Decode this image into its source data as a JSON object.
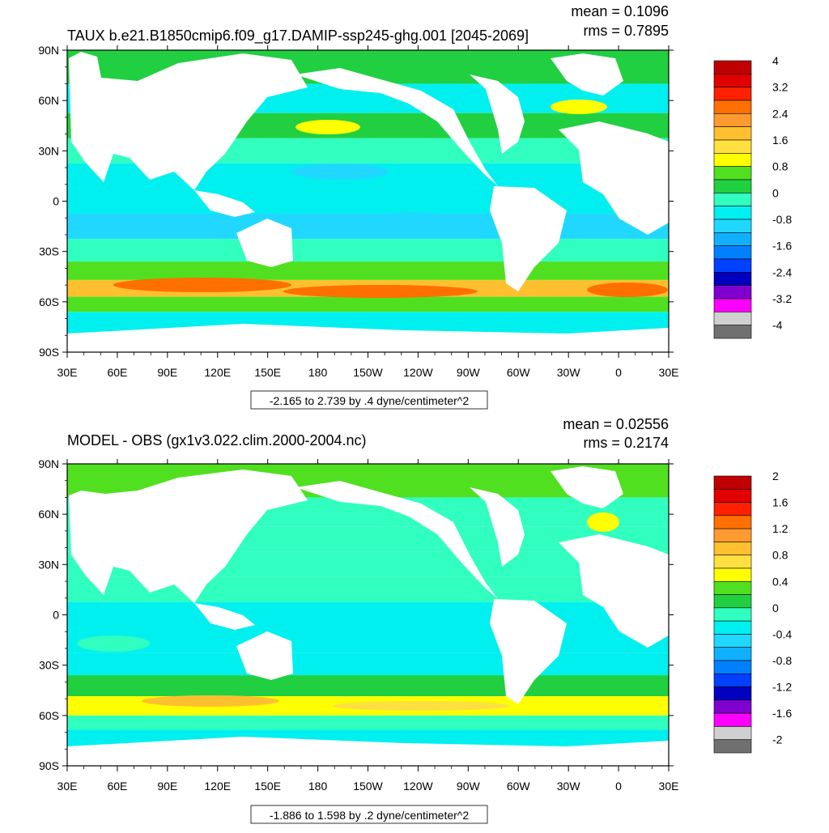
{
  "panels": [
    {
      "title": "TAUX b.e21.B1850cmip6.f09_g17.DAMIP-ssp245-ghg.001 [2045-2069]",
      "mean_text": "mean = 0.1096",
      "rms_text": "rms = 0.7895",
      "range_note": "-2.165 to 2.739 by .4 dyne/centimeter^2",
      "y_ticks": [
        "90N",
        "60N",
        "30N",
        "0",
        "30S",
        "60S",
        "90S"
      ],
      "x_ticks": [
        "30E",
        "60E",
        "90E",
        "120E",
        "150E",
        "180",
        "150W",
        "120W",
        "90W",
        "60W",
        "30W",
        "0",
        "30E"
      ],
      "colorbar": {
        "labels": [
          "4",
          "3.2",
          "2.4",
          "1.6",
          "0.8",
          "0",
          "-0.8",
          "-1.6",
          "-2.4",
          "-3.2",
          "-4"
        ],
        "colors": [
          "#c00000",
          "#e00000",
          "#ff2000",
          "#ff7000",
          "#ff9a30",
          "#ffc030",
          "#ffe040",
          "#ffff00",
          "#50e020",
          "#20d040",
          "#30ffc0",
          "#00f0f0",
          "#20d8ff",
          "#10b0ff",
          "#0080ff",
          "#0040ff",
          "#0000c0",
          "#8000d0",
          "#ff00ff",
          "#d0d0d0",
          "#707070"
        ]
      }
    },
    {
      "title": "MODEL - OBS (gx1v3.022.clim.2000-2004.nc)",
      "mean_text": "mean = 0.02556",
      "rms_text": "rms = 0.2174",
      "range_note": "-1.886 to 1.598 by .2 dyne/centimeter^2",
      "y_ticks": [
        "90N",
        "60N",
        "30N",
        "0",
        "30S",
        "60S",
        "90S"
      ],
      "x_ticks": [
        "30E",
        "60E",
        "90E",
        "120E",
        "150E",
        "180",
        "150W",
        "120W",
        "90W",
        "60W",
        "30W",
        "0",
        "30E"
      ],
      "colorbar": {
        "labels": [
          "2",
          "1.6",
          "1.2",
          "0.8",
          "0.4",
          "0",
          "-0.4",
          "-0.8",
          "-1.2",
          "-1.6",
          "-2"
        ],
        "colors": [
          "#c00000",
          "#e00000",
          "#ff2000",
          "#ff7000",
          "#ff9a30",
          "#ffc030",
          "#ffe040",
          "#ffff00",
          "#50e020",
          "#20d040",
          "#30ffc0",
          "#00f0f0",
          "#20d8ff",
          "#10b0ff",
          "#0080ff",
          "#0040ff",
          "#0000c0",
          "#8000d0",
          "#ff00ff",
          "#d0d0d0",
          "#707070"
        ]
      }
    }
  ],
  "chart_data": [
    {
      "type": "heatmap",
      "title": "TAUX b.e21.B1850cmip6.f09_g17.DAMIP-ssp245-ghg.001 [2045-2069]",
      "mean": 0.1096,
      "rms": 0.7895,
      "field_min": -2.165,
      "field_max": 2.739,
      "contour_interval": 0.4,
      "units": "dyne/centimeter^2",
      "xlim": [
        "30E",
        "30E"
      ],
      "ylim": [
        "90S",
        "90N"
      ],
      "colorbar_range": [
        -4,
        4
      ],
      "zonal_mean_bands": [
        {
          "lat": 80,
          "value": 0.2
        },
        {
          "lat": 60,
          "value": -0.2
        },
        {
          "lat": 45,
          "value": 0.5
        },
        {
          "lat": 30,
          "value": 0.1
        },
        {
          "lat": 15,
          "value": -0.5
        },
        {
          "lat": 0,
          "value": -0.3
        },
        {
          "lat": -15,
          "value": -0.6
        },
        {
          "lat": -30,
          "value": -0.1
        },
        {
          "lat": -42,
          "value": 0.8
        },
        {
          "lat": -52,
          "value": 2.0
        },
        {
          "lat": -62,
          "value": 0.6
        },
        {
          "lat": -70,
          "value": -0.3
        }
      ]
    },
    {
      "type": "heatmap",
      "title": "MODEL - OBS (gx1v3.022.clim.2000-2004.nc)",
      "mean": 0.02556,
      "rms": 0.2174,
      "field_min": -1.886,
      "field_max": 1.598,
      "contour_interval": 0.2,
      "units": "dyne/centimeter^2",
      "xlim": [
        "30E",
        "30E"
      ],
      "ylim": [
        "90S",
        "90N"
      ],
      "colorbar_range": [
        -2,
        2
      ],
      "zonal_mean_bands": [
        {
          "lat": 80,
          "value": 0.3
        },
        {
          "lat": 60,
          "value": 0.0
        },
        {
          "lat": 45,
          "value": 0.05
        },
        {
          "lat": 30,
          "value": 0.0
        },
        {
          "lat": 15,
          "value": 0.05
        },
        {
          "lat": 0,
          "value": -0.15
        },
        {
          "lat": -15,
          "value": -0.1
        },
        {
          "lat": -30,
          "value": -0.1
        },
        {
          "lat": -42,
          "value": 0.1
        },
        {
          "lat": -55,
          "value": 0.6
        },
        {
          "lat": -65,
          "value": 0.0
        },
        {
          "lat": -72,
          "value": -0.2
        }
      ]
    }
  ]
}
